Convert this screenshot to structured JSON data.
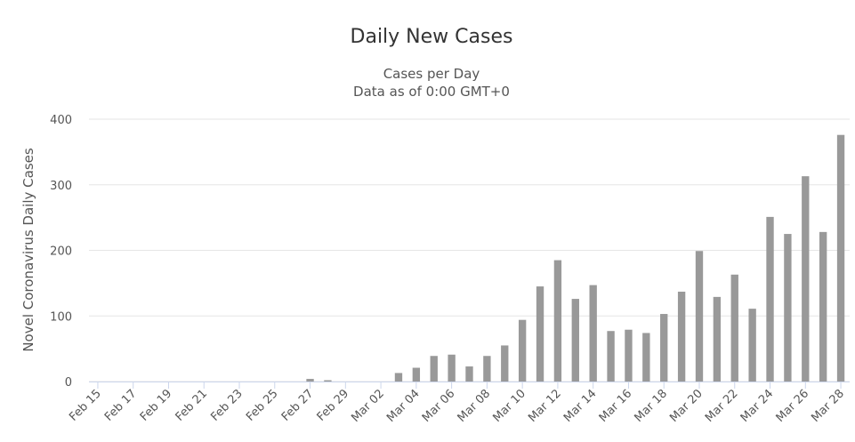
{
  "chart_data": {
    "type": "bar",
    "title": "Daily New Cases",
    "subtitle": [
      "Cases per Day",
      "Data as of 0:00 GMT+0"
    ],
    "y_label": "Novel Coronavirus Daily Cases",
    "categories": [
      "Feb 15",
      null,
      "Feb 17",
      null,
      "Feb 19",
      null,
      "Feb 21",
      null,
      "Feb 23",
      null,
      "Feb 25",
      null,
      "Feb 27",
      null,
      "Feb 29",
      null,
      "Mar 02",
      null,
      "Mar 04",
      null,
      "Mar 06",
      null,
      "Mar 08",
      null,
      "Mar 10",
      null,
      "Mar 12",
      null,
      "Mar 14",
      null,
      "Mar 16",
      null,
      "Mar 18",
      null,
      "Mar 20",
      null,
      "Mar 22",
      null,
      "Mar 24",
      null,
      "Mar 26",
      null,
      "Mar 28"
    ],
    "values": [
      0,
      0,
      0,
      0,
      0,
      0,
      0,
      0,
      0,
      0,
      0,
      0,
      4,
      2,
      0,
      0,
      0,
      13,
      21,
      39,
      41,
      23,
      39,
      55,
      94,
      145,
      185,
      126,
      147,
      77,
      79,
      74,
      103,
      137,
      199,
      129,
      163,
      111,
      251,
      225,
      313,
      228,
      376
    ],
    "color": "#999999",
    "ylim": [
      0,
      400
    ],
    "yticks": [
      0,
      100,
      200,
      300,
      400
    ],
    "grid": true
  }
}
